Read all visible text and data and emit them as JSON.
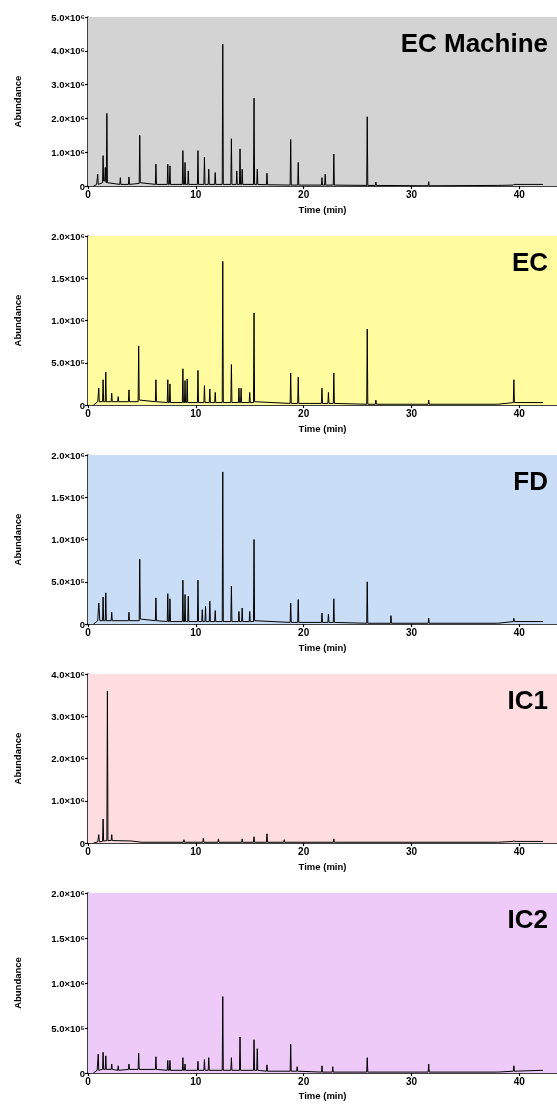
{
  "chart_data": [
    {
      "type": "line",
      "title": "EC Machine",
      "xlabel": "Time (min)",
      "ylabel": "Abundance",
      "marker": "none",
      "xlim": [
        0,
        43.5
      ],
      "xticks": [
        0,
        10,
        20,
        30,
        40
      ],
      "ylim": [
        0,
        5000000
      ],
      "yticks": [
        {
          "value": 0,
          "label": "0"
        },
        {
          "value": 1000000,
          "label": "1.0×10⁶"
        },
        {
          "value": 2000000,
          "label": "2.0×10⁶"
        },
        {
          "value": 3000000,
          "label": "3.0×10⁶"
        },
        {
          "value": 4000000,
          "label": "4.0×10⁶"
        },
        {
          "value": 5000000,
          "label": "5.0×10⁶"
        }
      ],
      "bands": [
        {
          "axis": "x",
          "from": 0,
          "to": 43.5,
          "color": "#d3d3d3"
        }
      ],
      "series": [
        {
          "color": "#000000",
          "x": [
            0.5,
            0.8,
            0.85,
            0.9,
            0.95,
            1.35,
            1.4,
            1.45,
            1.55,
            1.6,
            1.65,
            1.7,
            1.75,
            1.8,
            2.95,
            3.0,
            3.05,
            3.75,
            3.8,
            3.85,
            4.75,
            4.8,
            4.85,
            6.25,
            6.3,
            6.35,
            7.35,
            7.4,
            7.45,
            7.55,
            7.6,
            7.65,
            8.75,
            8.8,
            8.85,
            8.95,
            9.0,
            9.05,
            9.25,
            9.3,
            9.35,
            10.15,
            10.2,
            10.25,
            10.75,
            10.8,
            10.85,
            11.15,
            11.2,
            11.25,
            11.75,
            11.8,
            11.85,
            12.45,
            12.5,
            12.55,
            13.25,
            13.3,
            13.35,
            13.75,
            13.8,
            13.85,
            14.05,
            14.1,
            14.15,
            14.25,
            14.3,
            14.35,
            15.35,
            15.4,
            15.45,
            15.65,
            15.7,
            15.75,
            16.55,
            16.6,
            16.65,
            18.75,
            18.8,
            18.85,
            19.45,
            19.5,
            19.55,
            21.65,
            21.7,
            21.75,
            21.95,
            22.0,
            22.05,
            22.75,
            22.8,
            22.85,
            25.85,
            25.9,
            25.95,
            26.65,
            26.7,
            26.75,
            31.55,
            31.6,
            31.65,
            38,
            39.45,
            39.5,
            39.55,
            42.2
          ],
          "values": [
            0,
            50000,
            50000,
            350000,
            50000,
            100000,
            900000,
            150000,
            150000,
            550000,
            150000,
            100000,
            2150000,
            100000,
            50000,
            250000,
            50000,
            50000,
            270000,
            50000,
            80000,
            1500000,
            100000,
            50000,
            650000,
            50000,
            50000,
            650000,
            50000,
            50000,
            600000,
            50000,
            50000,
            1050000,
            50000,
            50000,
            700000,
            50000,
            50000,
            450000,
            50000,
            50000,
            1050000,
            50000,
            50000,
            850000,
            50000,
            50000,
            500000,
            50000,
            50000,
            400000,
            50000,
            50000,
            4200000,
            50000,
            50000,
            1400000,
            50000,
            50000,
            450000,
            50000,
            50000,
            1100000,
            50000,
            50000,
            500000,
            50000,
            50000,
            2600000,
            50000,
            50000,
            500000,
            50000,
            40000,
            380000,
            40000,
            30000,
            1380000,
            30000,
            30000,
            700000,
            30000,
            30000,
            250000,
            30000,
            30000,
            350000,
            30000,
            30000,
            950000,
            30000,
            20000,
            2050000,
            20000,
            20000,
            120000,
            20000,
            10000,
            130000,
            10000,
            20000,
            30000,
            50000,
            40000,
            50000
          ]
        }
      ]
    },
    {
      "type": "line",
      "title": "EC",
      "xlabel": "Time (min)",
      "ylabel": "Abundance",
      "marker": "none",
      "xlim": [
        0,
        43.5
      ],
      "xticks": [
        0,
        10,
        20,
        30,
        40
      ],
      "ylim": [
        0,
        2000000
      ],
      "yticks": [
        {
          "value": 0,
          "label": "0"
        },
        {
          "value": 500000,
          "label": "5.0×10⁵"
        },
        {
          "value": 1000000,
          "label": "1.0×10⁶"
        },
        {
          "value": 1500000,
          "label": "1.5×10⁶"
        },
        {
          "value": 2000000,
          "label": "2.0×10⁶"
        }
      ],
      "bands": [
        {
          "axis": "x",
          "from": 0,
          "to": 43.5,
          "color": "#fffb9f"
        }
      ],
      "series": [
        {
          "color": "#000000",
          "x": [
            0.5,
            0.9,
            0.95,
            1.0,
            1.05,
            1.35,
            1.4,
            1.45,
            1.6,
            1.65,
            1.7,
            2.15,
            2.2,
            2.25,
            2.75,
            2.8,
            2.85,
            3.75,
            3.8,
            3.85,
            4.65,
            4.7,
            4.75,
            6.25,
            6.3,
            6.35,
            7.35,
            7.4,
            7.45,
            7.55,
            7.6,
            7.65,
            8.75,
            8.8,
            8.85,
            8.95,
            9.0,
            9.05,
            9.15,
            9.2,
            9.25,
            10.15,
            10.2,
            10.25,
            10.75,
            10.8,
            10.85,
            11.25,
            11.3,
            11.35,
            11.75,
            11.8,
            11.85,
            12.45,
            12.5,
            12.55,
            13.25,
            13.3,
            13.35,
            13.95,
            14.0,
            14.05,
            14.15,
            14.2,
            14.25,
            14.95,
            15.0,
            15.05,
            15.35,
            15.4,
            15.45,
            18.75,
            18.8,
            18.85,
            19.45,
            19.5,
            19.55,
            21.65,
            21.7,
            21.75,
            22.25,
            22.3,
            22.35,
            22.75,
            22.8,
            22.85,
            25.85,
            25.9,
            25.95,
            26.65,
            26.7,
            26.75,
            31.55,
            31.6,
            31.65,
            38,
            39.45,
            39.5,
            39.55,
            42.2
          ],
          "values": [
            0,
            40000,
            40000,
            200000,
            40000,
            40000,
            300000,
            40000,
            40000,
            390000,
            40000,
            40000,
            140000,
            40000,
            40000,
            100000,
            40000,
            40000,
            180000,
            40000,
            40000,
            700000,
            60000,
            40000,
            300000,
            40000,
            30000,
            300000,
            30000,
            30000,
            250000,
            30000,
            30000,
            430000,
            30000,
            30000,
            290000,
            30000,
            30000,
            310000,
            30000,
            30000,
            410000,
            30000,
            30000,
            230000,
            30000,
            30000,
            190000,
            30000,
            30000,
            150000,
            30000,
            30000,
            1700000,
            30000,
            30000,
            480000,
            30000,
            30000,
            200000,
            30000,
            30000,
            200000,
            30000,
            30000,
            150000,
            30000,
            30000,
            1090000,
            40000,
            20000,
            380000,
            20000,
            20000,
            330000,
            20000,
            20000,
            200000,
            20000,
            20000,
            150000,
            20000,
            20000,
            380000,
            20000,
            10000,
            900000,
            10000,
            10000,
            60000,
            10000,
            10000,
            60000,
            10000,
            10000,
            30000,
            300000,
            30000,
            30000
          ]
        }
      ]
    },
    {
      "type": "line",
      "title": "FD",
      "xlabel": "Time (min)",
      "ylabel": "Abundance",
      "marker": "none",
      "xlim": [
        0,
        43.5
      ],
      "xticks": [
        0,
        10,
        20,
        30,
        40
      ],
      "ylim": [
        0,
        2000000
      ],
      "yticks": [
        {
          "value": 0,
          "label": "0"
        },
        {
          "value": 500000,
          "label": "5.0×10⁵"
        },
        {
          "value": 1000000,
          "label": "1.0×10⁶"
        },
        {
          "value": 1500000,
          "label": "1.5×10⁶"
        },
        {
          "value": 2000000,
          "label": "2.0×10⁶"
        }
      ],
      "bands": [
        {
          "axis": "x",
          "from": 0,
          "to": 43.5,
          "color": "#c9ddf7"
        }
      ],
      "series": [
        {
          "color": "#000000",
          "x": [
            0.5,
            0.8,
            0.9,
            1.0,
            1.1,
            1.35,
            1.4,
            1.45,
            1.6,
            1.65,
            1.7,
            2.15,
            2.2,
            2.25,
            3.75,
            3.8,
            3.85,
            4.75,
            4.8,
            4.85,
            6.25,
            6.3,
            6.35,
            7.35,
            7.4,
            7.45,
            7.55,
            7.6,
            7.65,
            8.75,
            8.8,
            8.85,
            8.95,
            9.0,
            9.05,
            9.25,
            9.3,
            9.35,
            10.15,
            10.2,
            10.25,
            10.55,
            10.6,
            10.65,
            10.85,
            10.9,
            10.95,
            11.25,
            11.3,
            11.35,
            11.75,
            11.8,
            11.85,
            12.45,
            12.5,
            12.55,
            13.25,
            13.3,
            13.35,
            13.95,
            14.0,
            14.05,
            14.25,
            14.3,
            14.35,
            14.95,
            15.0,
            15.05,
            15.35,
            15.4,
            15.45,
            18.75,
            18.8,
            18.85,
            19.45,
            19.5,
            19.55,
            21.65,
            21.7,
            21.75,
            22.25,
            22.3,
            22.35,
            22.75,
            22.8,
            22.85,
            25.85,
            25.9,
            25.95,
            28.05,
            28.1,
            28.15,
            31.55,
            31.6,
            31.65,
            38,
            39.45,
            39.5,
            39.55,
            42.2
          ],
          "values": [
            0,
            30000,
            40000,
            250000,
            40000,
            40000,
            320000,
            40000,
            40000,
            370000,
            40000,
            40000,
            140000,
            40000,
            40000,
            140000,
            40000,
            40000,
            770000,
            60000,
            40000,
            310000,
            40000,
            30000,
            360000,
            30000,
            30000,
            300000,
            30000,
            30000,
            520000,
            30000,
            30000,
            350000,
            30000,
            30000,
            330000,
            30000,
            30000,
            520000,
            30000,
            30000,
            170000,
            30000,
            30000,
            210000,
            30000,
            30000,
            270000,
            30000,
            30000,
            160000,
            30000,
            30000,
            1800000,
            30000,
            30000,
            450000,
            30000,
            30000,
            150000,
            30000,
            30000,
            190000,
            30000,
            30000,
            150000,
            30000,
            30000,
            1000000,
            40000,
            20000,
            250000,
            20000,
            20000,
            290000,
            20000,
            20000,
            130000,
            20000,
            20000,
            120000,
            20000,
            20000,
            300000,
            20000,
            10000,
            500000,
            10000,
            10000,
            100000,
            10000,
            10000,
            70000,
            10000,
            10000,
            30000,
            70000,
            30000,
            30000
          ]
        }
      ]
    },
    {
      "type": "line",
      "title": "IC1",
      "xlabel": "Time (min)",
      "ylabel": "Abundance",
      "marker": "none",
      "xlim": [
        0,
        43.5
      ],
      "xticks": [
        0,
        10,
        20,
        30,
        40
      ],
      "ylim": [
        0,
        4000000
      ],
      "yticks": [
        {
          "value": 0,
          "label": "0"
        },
        {
          "value": 1000000,
          "label": "1.0×10⁶"
        },
        {
          "value": 2000000,
          "label": "2.0×10⁶"
        },
        {
          "value": 3000000,
          "label": "3.0×10⁶"
        },
        {
          "value": 4000000,
          "label": "4.0×10⁶"
        }
      ],
      "bands": [
        {
          "axis": "x",
          "from": 0,
          "to": 43.5,
          "color": "#fddde0"
        }
      ],
      "series": [
        {
          "color": "#000000",
          "x": [
            0.5,
            0.9,
            0.95,
            1.0,
            1.05,
            1.35,
            1.4,
            1.45,
            1.75,
            1.8,
            1.85,
            2.15,
            2.2,
            2.25,
            4.0,
            5.0,
            8.85,
            8.9,
            8.95,
            10.65,
            10.7,
            10.75,
            12.05,
            12.1,
            12.15,
            14.25,
            14.3,
            14.35,
            15.35,
            15.4,
            15.45,
            16.55,
            16.6,
            16.65,
            18.15,
            18.2,
            18.25,
            22.75,
            22.8,
            22.85,
            38,
            39.45,
            39.5,
            39.55,
            42.2
          ],
          "values": [
            0,
            30000,
            30000,
            200000,
            30000,
            40000,
            570000,
            50000,
            60000,
            3600000,
            60000,
            60000,
            200000,
            60000,
            50000,
            20000,
            20000,
            80000,
            20000,
            20000,
            120000,
            20000,
            20000,
            100000,
            20000,
            20000,
            100000,
            20000,
            20000,
            150000,
            20000,
            20000,
            220000,
            20000,
            20000,
            80000,
            20000,
            20000,
            100000,
            20000,
            20000,
            40000,
            60000,
            40000,
            40000
          ]
        }
      ]
    },
    {
      "type": "line",
      "title": "IC2",
      "xlabel": "Time (min)",
      "ylabel": "Abundance",
      "marker": "none",
      "xlim": [
        0,
        43.5
      ],
      "xticks": [
        0,
        10,
        20,
        30,
        40
      ],
      "ylim": [
        0,
        2000000
      ],
      "yticks": [
        {
          "value": 0,
          "label": "0"
        },
        {
          "value": 500000,
          "label": "5.0×10⁵"
        },
        {
          "value": 1000000,
          "label": "1.0×10⁶"
        },
        {
          "value": 1500000,
          "label": "1.5×10⁶"
        },
        {
          "value": 2000000,
          "label": "2.0×10⁶"
        }
      ],
      "bands": [
        {
          "axis": "x",
          "from": 0,
          "to": 43.5,
          "color": "#edcaf7"
        }
      ],
      "series": [
        {
          "color": "#000000",
          "x": [
            0.5,
            0.85,
            0.9,
            0.95,
            1.0,
            1.35,
            1.4,
            1.45,
            1.6,
            1.65,
            1.7,
            2.15,
            2.2,
            2.25,
            2.75,
            2.8,
            2.85,
            3.75,
            3.8,
            3.85,
            4.65,
            4.7,
            4.75,
            6.25,
            6.3,
            6.35,
            7.35,
            7.4,
            7.45,
            7.55,
            7.6,
            7.65,
            8.75,
            8.8,
            8.85,
            8.95,
            9.0,
            9.05,
            10.15,
            10.2,
            10.25,
            10.75,
            10.8,
            10.85,
            11.15,
            11.2,
            11.25,
            12.45,
            12.5,
            12.55,
            13.25,
            13.3,
            13.35,
            14.05,
            14.1,
            14.15,
            15.35,
            15.4,
            15.45,
            15.65,
            15.7,
            15.75,
            16.55,
            16.6,
            16.65,
            18.75,
            18.8,
            18.85,
            19.35,
            19.4,
            19.45,
            21.65,
            21.7,
            21.75,
            22.65,
            22.7,
            22.75,
            25.85,
            25.9,
            25.95,
            31.55,
            31.6,
            31.65,
            38,
            39.45,
            39.5,
            39.55,
            42.2
          ],
          "values": [
            0,
            30000,
            30000,
            210000,
            30000,
            40000,
            230000,
            40000,
            40000,
            190000,
            40000,
            40000,
            100000,
            40000,
            30000,
            80000,
            30000,
            40000,
            100000,
            40000,
            40000,
            220000,
            40000,
            40000,
            180000,
            40000,
            30000,
            140000,
            30000,
            30000,
            140000,
            30000,
            30000,
            170000,
            30000,
            30000,
            100000,
            30000,
            30000,
            130000,
            30000,
            30000,
            150000,
            30000,
            30000,
            170000,
            30000,
            30000,
            850000,
            30000,
            30000,
            170000,
            30000,
            30000,
            400000,
            30000,
            30000,
            370000,
            30000,
            30000,
            270000,
            30000,
            20000,
            90000,
            20000,
            20000,
            320000,
            20000,
            20000,
            70000,
            20000,
            10000,
            80000,
            10000,
            10000,
            70000,
            10000,
            10000,
            170000,
            10000,
            10000,
            100000,
            10000,
            10000,
            20000,
            80000,
            20000,
            30000
          ]
        }
      ]
    }
  ]
}
